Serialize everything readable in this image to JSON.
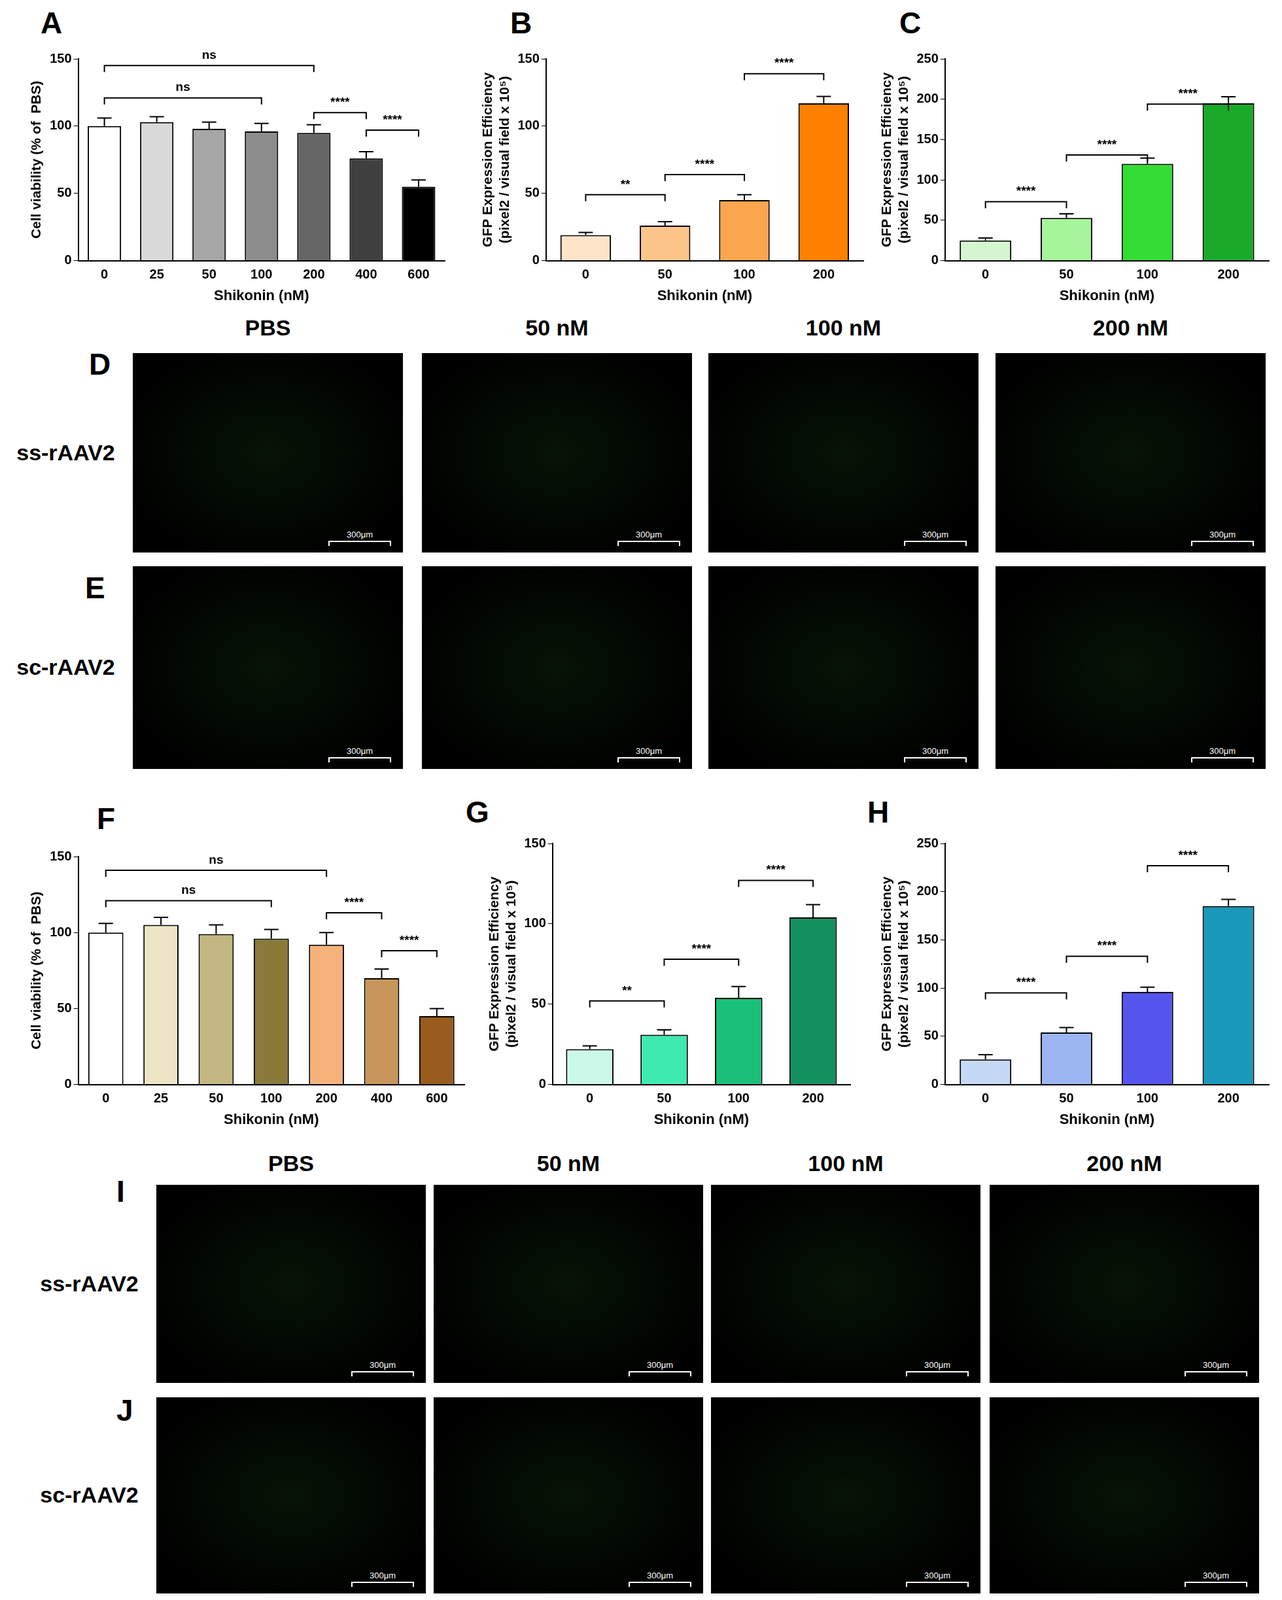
{
  "chart_data": [
    {
      "type": "bar",
      "panel": "A",
      "x_label": "Shikonin (nM)",
      "y_label": "Cell viability (% of  PBS)",
      "categories": [
        "0",
        "25",
        "50",
        "100",
        "200",
        "400",
        "600"
      ],
      "values": [
        100,
        103,
        98,
        96,
        95,
        76,
        55
      ],
      "errors": [
        6,
        4,
        5,
        6,
        6,
        5,
        5
      ],
      "colors": [
        "#ffffff",
        "#d9d9d9",
        "#a6a6a6",
        "#8c8c8c",
        "#666666",
        "#404040",
        "#000000"
      ],
      "ylim": [
        0,
        150
      ],
      "yticks": [
        0,
        50,
        100,
        150
      ],
      "grid": false,
      "comparisons": [
        {
          "from": "0",
          "to": "200",
          "label": "ns",
          "y": 145
        },
        {
          "from": "0",
          "to": "100",
          "label": "ns",
          "y": 121
        },
        {
          "from": "200",
          "to": "400",
          "label": "****",
          "y": 110
        },
        {
          "from": "400",
          "to": "600",
          "label": "****",
          "y": 97
        }
      ]
    },
    {
      "type": "bar",
      "panel": "B",
      "x_label": "Shikonin (nM)",
      "y_label": [
        "GFP Expression Efficiency",
        "(pixel2 / visual field x 10⁵)"
      ],
      "categories": [
        "0",
        "50",
        "100",
        "200"
      ],
      "values": [
        19,
        26,
        45,
        117
      ],
      "errors": [
        2,
        3,
        4,
        5
      ],
      "colors": [
        "#fde3c8",
        "#fcc488",
        "#fba54d",
        "#ff8000"
      ],
      "ylim": [
        0,
        150
      ],
      "yticks": [
        0,
        50,
        100,
        150
      ],
      "grid": false,
      "comparisons": [
        {
          "from": "0",
          "to": "50",
          "label": "**",
          "y": 49
        },
        {
          "from": "50",
          "to": "100",
          "label": "****",
          "y": 64
        },
        {
          "from": "100",
          "to": "200",
          "label": "****",
          "y": 139
        }
      ]
    },
    {
      "type": "bar",
      "panel": "C",
      "x_label": "Shikonin (nM)",
      "y_label": [
        "GFP Expression Efficiency",
        "(pixel2 / visual field x 10⁵)"
      ],
      "categories": [
        "0",
        "50",
        "100",
        "200"
      ],
      "values": [
        25,
        53,
        120,
        195
      ],
      "errors": [
        3,
        5,
        7,
        8
      ],
      "colors": [
        "#d5f5d0",
        "#a6f59a",
        "#33dd33",
        "#1aaa2a"
      ],
      "ylim": [
        0,
        250
      ],
      "yticks": [
        0,
        50,
        100,
        150,
        200,
        250
      ],
      "grid": false,
      "comparisons": [
        {
          "from": "0",
          "to": "50",
          "label": "****",
          "y": 73
        },
        {
          "from": "50",
          "to": "100",
          "label": "****",
          "y": 131
        },
        {
          "from": "100",
          "to": "200",
          "label": "****",
          "y": 194
        }
      ]
    },
    {
      "type": "bar",
      "panel": "F",
      "x_label": "Shikonin (nM)",
      "y_label": "Cell viability (% of  PBS)",
      "categories": [
        "0",
        "25",
        "50",
        "100",
        "200",
        "400",
        "600"
      ],
      "values": [
        100,
        105,
        99,
        96,
        92,
        70,
        45
      ],
      "errors": [
        6,
        5,
        6,
        6,
        8,
        6,
        5
      ],
      "colors": [
        "#ffffff",
        "#ede5c5",
        "#c2b780",
        "#8a7a3a",
        "#f5b27a",
        "#c8965a",
        "#9a5c1e"
      ],
      "ylim": [
        0,
        150
      ],
      "yticks": [
        0,
        50,
        100,
        150
      ],
      "grid": false,
      "comparisons": [
        {
          "from": "0",
          "to": "200",
          "label": "ns",
          "y": 141
        },
        {
          "from": "0",
          "to": "100",
          "label": "ns",
          "y": 121
        },
        {
          "from": "200",
          "to": "400",
          "label": "****",
          "y": 113
        },
        {
          "from": "400",
          "to": "600",
          "label": "****",
          "y": 88
        }
      ]
    },
    {
      "type": "bar",
      "panel": "G",
      "x_label": "Shikonin (nM)",
      "y_label": [
        "GFP Expression Efficiency",
        "(pixel2 / visual field x 10⁵)"
      ],
      "categories": [
        "0",
        "50",
        "100",
        "200"
      ],
      "values": [
        22,
        31,
        54,
        104
      ],
      "errors": [
        2,
        3,
        7,
        8
      ],
      "colors": [
        "#ccf8ea",
        "#3eeab0",
        "#1ac07a",
        "#149060"
      ],
      "ylim": [
        0,
        150
      ],
      "yticks": [
        0,
        50,
        100,
        150
      ],
      "grid": false,
      "comparisons": [
        {
          "from": "0",
          "to": "50",
          "label": "**",
          "y": 52
        },
        {
          "from": "50",
          "to": "100",
          "label": "****",
          "y": 78
        },
        {
          "from": "100",
          "to": "200",
          "label": "****",
          "y": 127
        }
      ]
    },
    {
      "type": "bar",
      "panel": "H",
      "x_label": "Shikonin (nM)",
      "y_label": [
        "GFP Expression Efficiency",
        "(pixel2 / visual field x 10⁵)"
      ],
      "categories": [
        "0",
        "50",
        "100",
        "200"
      ],
      "values": [
        26,
        54,
        96,
        185
      ],
      "errors": [
        5,
        5,
        5,
        7
      ],
      "colors": [
        "#c5d8f5",
        "#9ab5f2",
        "#5555ee",
        "#1a99bb"
      ],
      "ylim": [
        0,
        250
      ],
      "yticks": [
        0,
        50,
        100,
        150,
        200,
        250
      ],
      "grid": false,
      "comparisons": [
        {
          "from": "0",
          "to": "50",
          "label": "****",
          "y": 95
        },
        {
          "from": "50",
          "to": "100",
          "label": "****",
          "y": 133
        },
        {
          "from": "100",
          "to": "200",
          "label": "****",
          "y": 227
        }
      ]
    }
  ],
  "image_panels": [
    {
      "columns": [
        "PBS",
        "50 nM",
        "100 nM",
        "200 nM"
      ],
      "scale_bar": "300μm",
      "rows": [
        {
          "panel": "D",
          "label": "ss-rAAV2"
        },
        {
          "panel": "E",
          "label": "sc-rAAV2"
        }
      ]
    },
    {
      "columns": [
        "PBS",
        "50 nM",
        "100 nM",
        "200 nM"
      ],
      "scale_bar": "300μm",
      "rows": [
        {
          "panel": "I",
          "label": "ss-rAAV2"
        },
        {
          "panel": "J",
          "label": "sc-rAAV2"
        }
      ]
    }
  ]
}
